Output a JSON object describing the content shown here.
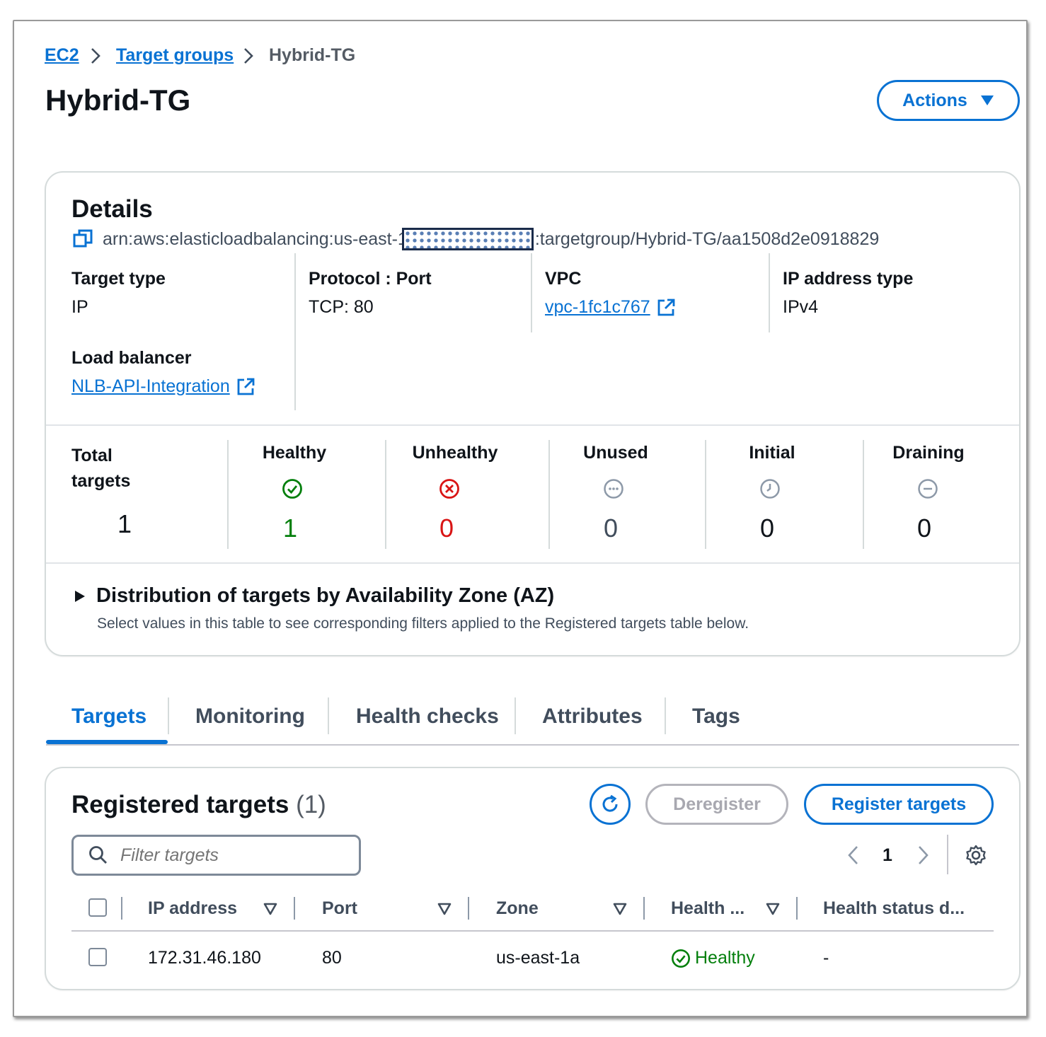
{
  "breadcrumb": [
    "EC2",
    "Target groups",
    "Hybrid-TG"
  ],
  "page_title": "Hybrid-TG",
  "actions_label": "Actions",
  "details": {
    "title": "Details",
    "arn_prefix": "arn:aws:elasticloadbalancing:us-east-1",
    "arn_suffix": ":targetgroup/Hybrid-TG/aa1508d2e0918829",
    "fields": {
      "target_type": {
        "label": "Target type",
        "value": "IP"
      },
      "protocol_port": {
        "label": "Protocol : Port",
        "value": "TCP: 80"
      },
      "vpc": {
        "label": "VPC",
        "value": "vpc-1fc1c767"
      },
      "ip_address_type": {
        "label": "IP address type",
        "value": "IPv4"
      },
      "load_balancer": {
        "label": "Load balancer",
        "value": "NLB-API-Integration"
      }
    },
    "stats": {
      "total": {
        "label_line1": "Total",
        "label_line2": "targets",
        "value": "1"
      },
      "healthy": {
        "label": "Healthy",
        "value": "1"
      },
      "unhealthy": {
        "label": "Unhealthy",
        "value": "0"
      },
      "unused": {
        "label": "Unused",
        "value": "0"
      },
      "initial": {
        "label": "Initial",
        "value": "0"
      },
      "draining": {
        "label": "Draining",
        "value": "0"
      }
    },
    "distribution": {
      "title": "Distribution of targets by Availability Zone (AZ)",
      "description": "Select values in this table to see corresponding filters applied to the Registered targets table below."
    }
  },
  "tabs": [
    "Targets",
    "Monitoring",
    "Health checks",
    "Attributes",
    "Tags"
  ],
  "active_tab": "Targets",
  "registered": {
    "title": "Registered targets",
    "count": "(1)",
    "deregister_label": "Deregister",
    "register_label": "Register targets",
    "filter_placeholder": "Filter targets",
    "page": "1",
    "columns": [
      "IP address",
      "Port",
      "Zone",
      "Health ...",
      "Health status d..."
    ],
    "rows": [
      {
        "ip": "172.31.46.180",
        "port": "80",
        "zone": "us-east-1a",
        "health": "Healthy",
        "health_details": "-"
      }
    ]
  },
  "colors": {
    "link": "#0972d3",
    "healthy": "#037f0c",
    "unhealthy": "#d91515",
    "neutral_icon": "#8d99a8"
  }
}
